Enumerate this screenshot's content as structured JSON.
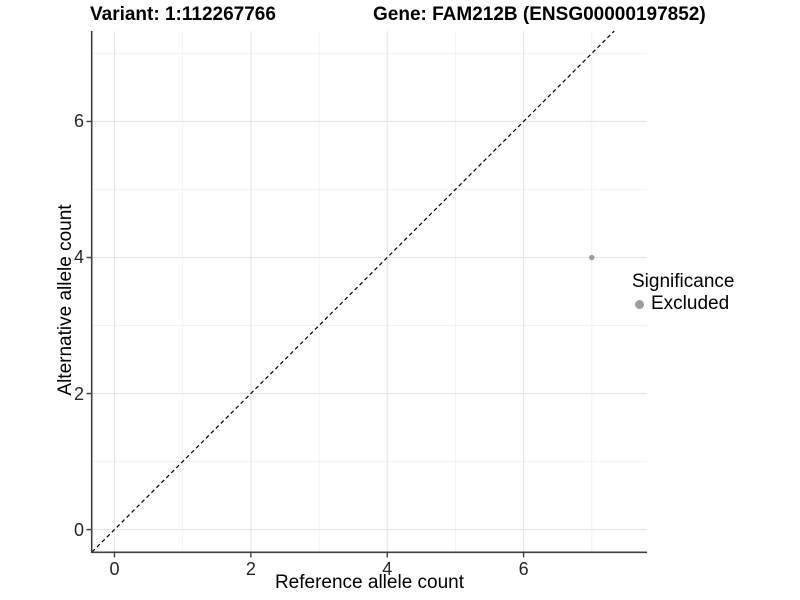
{
  "chart_data": {
    "type": "scatter",
    "title_left": "Variant: 1:112267766",
    "title_right": "Gene: FAM212B (ENSG00000197852)",
    "xlabel": "Reference allele count",
    "ylabel": "Alternative allele count",
    "xlim": [
      -0.33,
      7.81
    ],
    "ylim": [
      -0.33,
      7.33
    ],
    "x_ticks": [
      0,
      2,
      4,
      6
    ],
    "y_ticks": [
      0,
      2,
      4,
      6
    ],
    "x_minor_gridlines": [
      1,
      3,
      5,
      7
    ],
    "y_minor_gridlines": [
      1,
      3,
      5,
      7
    ],
    "grid": "major and minor, light gray, on white panel",
    "identity_line": {
      "type": "y=x",
      "style": "dashed",
      "color": "#000000"
    },
    "series": [
      {
        "name": "Excluded",
        "color": "#9d9d9d",
        "points": [
          {
            "x": 7,
            "y": 4
          }
        ]
      }
    ],
    "legend": {
      "position": "right",
      "title": "Significance",
      "items": [
        {
          "label": "Excluded",
          "color": "#9d9d9d",
          "marker": "dot"
        }
      ]
    },
    "colors": {
      "background": "#ffffff",
      "axis_line": "#404040",
      "tick_label": "#262626",
      "major_grid": "#e6e6e6",
      "minor_grid": "#f2f2f2"
    }
  }
}
